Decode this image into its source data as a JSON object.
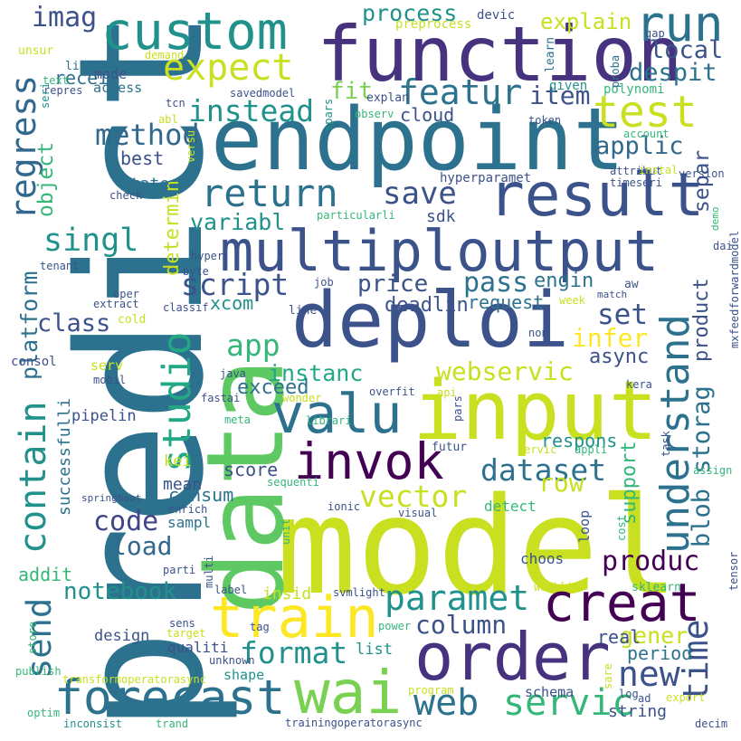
{
  "word_cloud": {
    "words": [
      {
        "text": "model",
        "color": "#c8e020"
      },
      {
        "text": "predict",
        "color": "#2c728e"
      },
      {
        "text": "endpoint",
        "color": "#2c728e"
      },
      {
        "text": "function",
        "color": "#46327e"
      },
      {
        "text": "data",
        "color": "#5ec962"
      },
      {
        "text": "deploi",
        "color": "#3b528b"
      },
      {
        "text": "multiploutput",
        "color": "#3b528b"
      },
      {
        "text": "input",
        "color": "#c8e020"
      },
      {
        "text": "order",
        "color": "#46327e"
      },
      {
        "text": "result",
        "color": "#3b528b"
      },
      {
        "text": "custom",
        "color": "#21918c"
      },
      {
        "text": "train",
        "color": "#fde725"
      },
      {
        "text": "invok",
        "color": "#440154"
      },
      {
        "text": "valu",
        "color": "#2c728e"
      },
      {
        "text": "wai",
        "color": "#7ad151"
      },
      {
        "text": "creat",
        "color": "#440154"
      },
      {
        "text": "forecast",
        "color": "#2c728e"
      },
      {
        "text": "run",
        "color": "#2c728e"
      },
      {
        "text": "understand",
        "color": "#2c728e"
      },
      {
        "text": "expect",
        "color": "#c8e020"
      },
      {
        "text": "test",
        "color": "#c8e020"
      },
      {
        "text": "contain",
        "color": "#21918c"
      },
      {
        "text": "regress",
        "color": "#31688e"
      },
      {
        "text": "return",
        "color": "#2c728e"
      },
      {
        "text": "studio",
        "color": "#22a884"
      },
      {
        "text": "servic",
        "color": "#35b779"
      },
      {
        "text": "web",
        "color": "#2c728e"
      },
      {
        "text": "paramet",
        "color": "#21918c"
      },
      {
        "text": "dataset",
        "color": "#2c728e"
      },
      {
        "text": "featur",
        "color": "#2c728e"
      },
      {
        "text": "format",
        "color": "#21918c"
      },
      {
        "text": "new",
        "color": "#3b528b"
      },
      {
        "text": "time",
        "color": "#3b528b"
      },
      {
        "text": "imag",
        "color": "#3b528b"
      },
      {
        "text": "send",
        "color": "#2c728e"
      },
      {
        "text": "blob storag",
        "color": "#2c728e"
      },
      {
        "text": "save",
        "color": "#3b528b"
      },
      {
        "text": "singl",
        "color": "#21918c"
      },
      {
        "text": "instead",
        "color": "#21918c"
      },
      {
        "text": "vector",
        "color": "#c8e020"
      },
      {
        "text": "app",
        "color": "#35b779"
      },
      {
        "text": "script",
        "color": "#3b528b"
      },
      {
        "text": "method",
        "color": "#31688e"
      },
      {
        "text": "webservic",
        "color": "#c8e020"
      },
      {
        "text": "code",
        "color": "#414487"
      },
      {
        "text": "load",
        "color": "#31688e"
      },
      {
        "text": "column",
        "color": "#3b528b"
      },
      {
        "text": "notebook",
        "color": "#21918c"
      },
      {
        "text": "produc",
        "color": "#440154"
      },
      {
        "text": "set",
        "color": "#3b528b"
      },
      {
        "text": "infer",
        "color": "#fde725"
      },
      {
        "text": "pass",
        "color": "#2c728e"
      },
      {
        "text": "price",
        "color": "#3b528b"
      },
      {
        "text": "row",
        "color": "#c8e020"
      },
      {
        "text": "item",
        "color": "#3b528b"
      },
      {
        "text": "applic",
        "color": "#31688e"
      },
      {
        "text": "class",
        "color": "#3b528b"
      },
      {
        "text": "instanc",
        "color": "#22a884"
      },
      {
        "text": "variabl",
        "color": "#21918c"
      },
      {
        "text": "local",
        "color": "#3b528b"
      },
      {
        "text": "despit",
        "color": "#2c728e"
      },
      {
        "text": "process",
        "color": "#21918c"
      },
      {
        "text": "explain",
        "color": "#c8e020"
      },
      {
        "text": "fit",
        "color": "#7ad151"
      },
      {
        "text": "object",
        "color": "#35b779"
      },
      {
        "text": "platform",
        "color": "#2c728e"
      },
      {
        "text": "determin",
        "color": "#c8e020"
      },
      {
        "text": "separ",
        "color": "#3b528b"
      },
      {
        "text": "support",
        "color": "#35b779"
      },
      {
        "text": "product",
        "color": "#3b528b"
      },
      {
        "text": "gener",
        "color": "#c8e020"
      },
      {
        "text": "exceed",
        "color": "#2c728e"
      },
      {
        "text": "engin",
        "color": "#2c728e"
      },
      {
        "text": "deadlin",
        "color": "#3b528b"
      },
      {
        "text": "request",
        "color": "#2c728e"
      },
      {
        "text": "async",
        "color": "#3b528b"
      },
      {
        "text": "respons",
        "color": "#21918c"
      },
      {
        "text": "real",
        "color": "#3b528b"
      },
      {
        "text": "period",
        "color": "#2c728e"
      },
      {
        "text": "cloud",
        "color": "#3b528b"
      },
      {
        "text": "best",
        "color": "#3b528b"
      },
      {
        "text": "sdk",
        "color": "#3b528b"
      },
      {
        "text": "consum",
        "color": "#2c728e"
      },
      {
        "text": "mean",
        "color": "#3b528b"
      },
      {
        "text": "score",
        "color": "#3b528b"
      },
      {
        "text": "xcom",
        "color": "#21918c"
      },
      {
        "text": "receiv",
        "color": "#2c728e"
      },
      {
        "text": "state",
        "color": "#2c728e"
      },
      {
        "text": "mode",
        "color": "#3b528b"
      },
      {
        "text": "access",
        "color": "#2c728e"
      },
      {
        "text": "linear",
        "color": "#2c728e"
      },
      {
        "text": "successfulli",
        "color": "#2c728e"
      },
      {
        "text": "pipelin",
        "color": "#3b528b"
      },
      {
        "text": "consol",
        "color": "#3b528b"
      },
      {
        "text": "design",
        "color": "#3b528b"
      },
      {
        "text": "addit",
        "color": "#35b779"
      },
      {
        "text": "sampl",
        "color": "#2c728e"
      },
      {
        "text": "insid",
        "color": "#c8e020"
      },
      {
        "text": "qualiti",
        "color": "#3b528b"
      },
      {
        "text": "list",
        "color": "#21918c"
      },
      {
        "text": "shape",
        "color": "#21918c"
      },
      {
        "text": "string",
        "color": "#3b528b"
      },
      {
        "text": "schema",
        "color": "#3b528b"
      },
      {
        "text": "choos",
        "color": "#3b528b"
      },
      {
        "text": "detect",
        "color": "#35b779"
      },
      {
        "text": "loop",
        "color": "#3b528b"
      },
      {
        "text": "kei",
        "color": "#c8e020"
      },
      {
        "text": "serv",
        "color": "#c8e020"
      },
      {
        "text": "given",
        "color": "#21918c"
      },
      {
        "text": "polynomi",
        "color": "#35b779"
      },
      {
        "text": "token",
        "color": "#3b528b"
      },
      {
        "text": "hyperparamet",
        "color": "#3b528b"
      },
      {
        "text": "timeseri",
        "color": "#3b528b"
      },
      {
        "text": "attribut",
        "color": "#3b528b"
      },
      {
        "text": "version",
        "color": "#3b528b"
      },
      {
        "text": "instal",
        "color": "#c8e020"
      },
      {
        "text": "account",
        "color": "#35b779"
      },
      {
        "text": "devic",
        "color": "#3b528b"
      },
      {
        "text": "preprocess",
        "color": "#c8e020"
      },
      {
        "text": "gap",
        "color": "#3b528b"
      },
      {
        "text": "learn",
        "color": "#2c728e"
      },
      {
        "text": "proba",
        "color": "#2c728e"
      },
      {
        "text": "tcn",
        "color": "#3b528b"
      },
      {
        "text": "savedmodel",
        "color": "#3b528b"
      },
      {
        "text": "explan",
        "color": "#3b528b"
      },
      {
        "text": "observ",
        "color": "#35b779"
      },
      {
        "text": "spars",
        "color": "#21918c"
      },
      {
        "text": "abl",
        "color": "#c8e020"
      },
      {
        "text": "versu",
        "color": "#c8e020"
      },
      {
        "text": "check",
        "color": "#3b528b"
      },
      {
        "text": "particularli",
        "color": "#35b779"
      },
      {
        "text": "hyper",
        "color": "#3b528b"
      },
      {
        "text": "byte",
        "color": "#3b528b"
      },
      {
        "text": "tenant",
        "color": "#3b528b"
      },
      {
        "text": "oper",
        "color": "#3b528b"
      },
      {
        "text": "extract",
        "color": "#3b528b"
      },
      {
        "text": "cold",
        "color": "#c8e020"
      },
      {
        "text": "classif",
        "color": "#3b528b"
      },
      {
        "text": "job",
        "color": "#3b528b"
      },
      {
        "text": "line",
        "color": "#3b528b"
      },
      {
        "text": "week",
        "color": "#c8e020"
      },
      {
        "text": "match",
        "color": "#3b528b"
      },
      {
        "text": "aw",
        "color": "#3b528b"
      },
      {
        "text": "dai",
        "color": "#3b528b"
      },
      {
        "text": "mxfeedforwardmodel",
        "color": "#3b528b"
      },
      {
        "text": "demo",
        "color": "#35b779"
      },
      {
        "text": "non",
        "color": "#3b528b"
      },
      {
        "text": "mobil",
        "color": "#3b528b"
      },
      {
        "text": "java",
        "color": "#3b528b"
      },
      {
        "text": "overfit",
        "color": "#3b528b"
      },
      {
        "text": "api",
        "color": "#c8e020"
      },
      {
        "text": "kera",
        "color": "#3b528b"
      },
      {
        "text": "wonder",
        "color": "#c8e020"
      },
      {
        "text": "fastai",
        "color": "#3b528b"
      },
      {
        "text": "meta",
        "color": "#35b779"
      },
      {
        "text": "librari",
        "color": "#35b779"
      },
      {
        "text": "pars",
        "color": "#3b528b"
      },
      {
        "text": "futur",
        "color": "#3b528b"
      },
      {
        "text": "servic",
        "color": "#c8e020"
      },
      {
        "text": "appli",
        "color": "#35b779"
      },
      {
        "text": "task",
        "color": "#3b528b"
      },
      {
        "text": "assign",
        "color": "#35b779"
      },
      {
        "text": "springboot",
        "color": "#3b528b"
      },
      {
        "text": "sequenti",
        "color": "#35b779"
      },
      {
        "text": "ionic",
        "color": "#3b528b"
      },
      {
        "text": "enrich",
        "color": "#3b528b"
      },
      {
        "text": "visual",
        "color": "#3b528b"
      },
      {
        "text": "unit",
        "color": "#35b779"
      },
      {
        "text": "cost",
        "color": "#35b779"
      },
      {
        "text": "sklearn",
        "color": "#35b779"
      },
      {
        "text": "tensor",
        "color": "#3b528b"
      },
      {
        "text": "parti",
        "color": "#3b528b"
      },
      {
        "text": "multi",
        "color": "#3b528b"
      },
      {
        "text": "label",
        "color": "#3b528b"
      },
      {
        "text": "svmlight",
        "color": "#3b528b"
      },
      {
        "text": "weekli",
        "color": "#c8e020"
      },
      {
        "text": "sens",
        "color": "#3b528b"
      },
      {
        "text": "tag",
        "color": "#3b528b"
      },
      {
        "text": "target",
        "color": "#c8e020"
      },
      {
        "text": "unknown",
        "color": "#3b528b"
      },
      {
        "text": "power",
        "color": "#35b779"
      },
      {
        "text": "store",
        "color": "#35b779"
      },
      {
        "text": "publish",
        "color": "#35b779"
      },
      {
        "text": "transformoperatorasync",
        "color": "#c8e020"
      },
      {
        "text": "program",
        "color": "#c8e020"
      },
      {
        "text": "log",
        "color": "#3b528b"
      },
      {
        "text": "ad",
        "color": "#3b528b"
      },
      {
        "text": "export",
        "color": "#c8e020"
      },
      {
        "text": "sare",
        "color": "#c8e020"
      },
      {
        "text": "optim",
        "color": "#35b779"
      },
      {
        "text": "inconsist",
        "color": "#21918c"
      },
      {
        "text": "trand",
        "color": "#35b779"
      },
      {
        "text": "trainingoperatorasync",
        "color": "#3b528b"
      },
      {
        "text": "decim",
        "color": "#3b528b"
      },
      {
        "text": "unsur",
        "color": "#c8e020"
      },
      {
        "text": "text",
        "color": "#35b779"
      },
      {
        "text": "repres",
        "color": "#3b528b"
      },
      {
        "text": "seri",
        "color": "#21918c"
      },
      {
        "text": "demand",
        "color": "#c8e020"
      }
    ]
  }
}
